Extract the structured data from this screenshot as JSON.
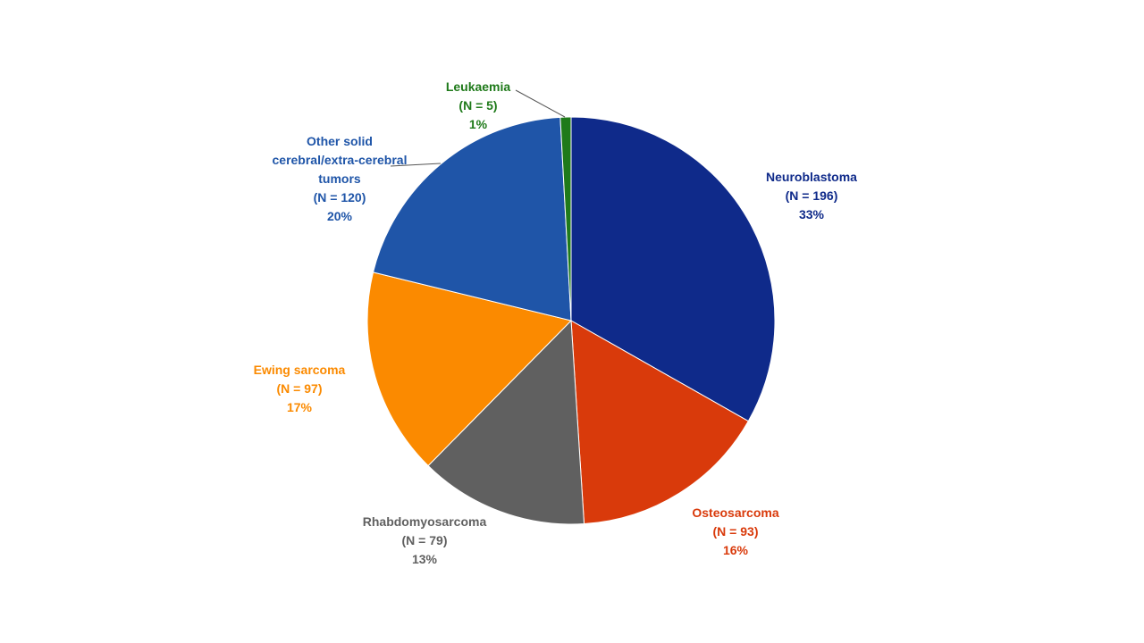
{
  "chart_data": {
    "type": "pie",
    "categories": [
      "Neuroblastoma",
      "Osteosarcoma",
      "Rhabdomyosarcoma",
      "Ewing sarcoma",
      "Other solid cerebral/extra-cerebral tumors",
      "Leukaemia"
    ],
    "values": [
      196,
      93,
      79,
      97,
      120,
      5
    ],
    "value_labels": [
      "(N = 196)",
      "(N = 93)",
      "(N = 79)",
      "(N = 97)",
      "(N = 120)",
      "(N = 5)"
    ],
    "percentages": [
      33,
      16,
      13,
      17,
      20,
      1
    ],
    "percentage_labels": [
      "33%",
      "16%",
      "13%",
      "17%",
      "20%",
      "1%"
    ],
    "colors": [
      "#0f2a8a",
      "#d93a0b",
      "#606060",
      "#fb8a00",
      "#1f55a8",
      "#1f7a1a"
    ]
  }
}
